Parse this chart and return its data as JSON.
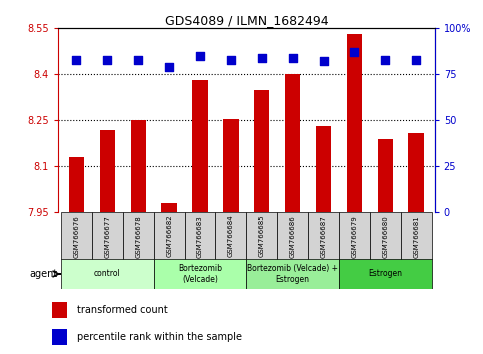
{
  "title": "GDS4089 / ILMN_1682494",
  "samples": [
    "GSM766676",
    "GSM766677",
    "GSM766678",
    "GSM766682",
    "GSM766683",
    "GSM766684",
    "GSM766685",
    "GSM766686",
    "GSM766687",
    "GSM766679",
    "GSM766680",
    "GSM766681"
  ],
  "bar_values": [
    8.13,
    8.22,
    8.25,
    7.98,
    8.38,
    8.255,
    8.35,
    8.4,
    8.23,
    8.53,
    8.19,
    8.21
  ],
  "dot_values": [
    83,
    83,
    83,
    79,
    85,
    83,
    84,
    84,
    82,
    87,
    83,
    83
  ],
  "bar_color": "#cc0000",
  "dot_color": "#0000cc",
  "ylim_left": [
    7.95,
    8.55
  ],
  "ylim_right": [
    0,
    100
  ],
  "yticks_left": [
    7.95,
    8.1,
    8.25,
    8.4,
    8.55
  ],
  "yticks_right": [
    0,
    25,
    50,
    75,
    100
  ],
  "ytick_labels_left": [
    "7.95",
    "8.1",
    "8.25",
    "8.4",
    "8.55"
  ],
  "ytick_labels_right": [
    "0",
    "25",
    "50",
    "75",
    "100%"
  ],
  "gridlines": [
    8.1,
    8.25,
    8.4
  ],
  "groups": [
    {
      "label": "control",
      "start": 0,
      "end": 3,
      "color": "#ccffcc"
    },
    {
      "label": "Bortezomib\n(Velcade)",
      "start": 3,
      "end": 6,
      "color": "#aaffaa"
    },
    {
      "label": "Bortezomib (Velcade) +\nEstrogen",
      "start": 6,
      "end": 9,
      "color": "#99ee99"
    },
    {
      "label": "Estrogen",
      "start": 9,
      "end": 12,
      "color": "#44cc44"
    }
  ],
  "agent_label": "agent",
  "legend_red": "transformed count",
  "legend_blue": "percentile rank within the sample",
  "bar_width": 0.5,
  "dot_size": 30,
  "left_tick_color": "#cc0000",
  "right_tick_color": "#0000cc"
}
